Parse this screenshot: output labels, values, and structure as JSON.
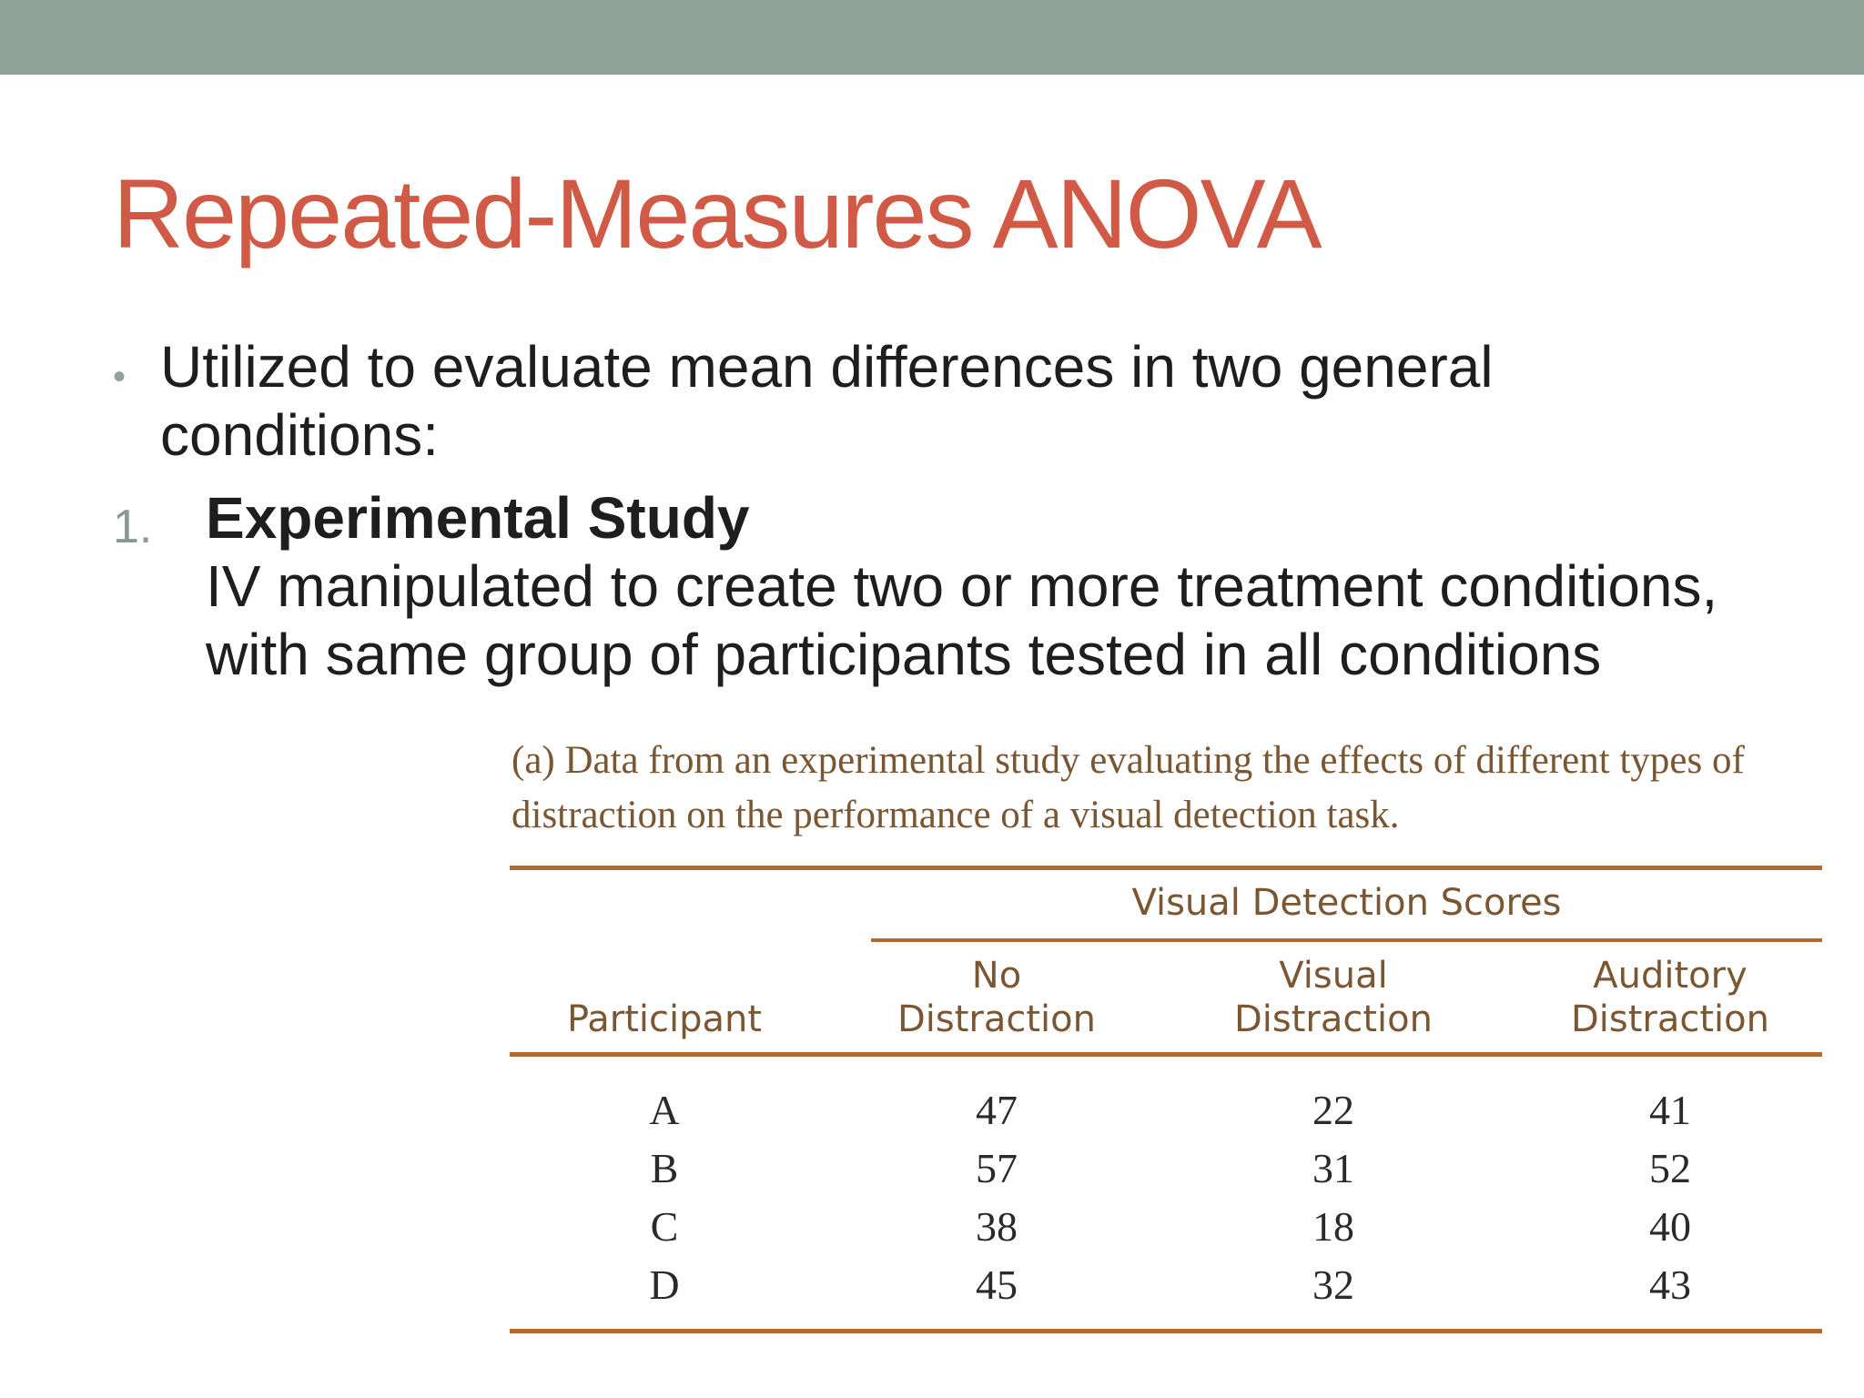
{
  "slide": {
    "title": "Repeated-Measures ANOVA",
    "bullet": "Utilized to evaluate mean differences in two general conditions:",
    "numbered_item": {
      "marker": "1.",
      "heading": "Experimental Study",
      "body": "IV manipulated to create two or more treatment conditions, with same group of participants tested in all conditions"
    }
  },
  "table": {
    "caption": "(a) Data from an experimental study evaluating the effects of different types of distraction on the performance of a visual detection task.",
    "group_header": "Visual Detection Scores",
    "columns": [
      {
        "line1": "",
        "line2": "Participant"
      },
      {
        "line1": "No",
        "line2": "Distraction"
      },
      {
        "line1": "Visual",
        "line2": "Distraction"
      },
      {
        "line1": "Auditory",
        "line2": "Distraction"
      }
    ],
    "rows": [
      [
        "A",
        "47",
        "22",
        "41"
      ],
      [
        "B",
        "57",
        "31",
        "52"
      ],
      [
        "C",
        "38",
        "18",
        "40"
      ],
      [
        "D",
        "45",
        "32",
        "43"
      ]
    ]
  },
  "colors": {
    "top_bar": "#8fa39a",
    "title": "#d05a45",
    "table_rule": "#b06a32",
    "table_text": "#7a5632"
  }
}
